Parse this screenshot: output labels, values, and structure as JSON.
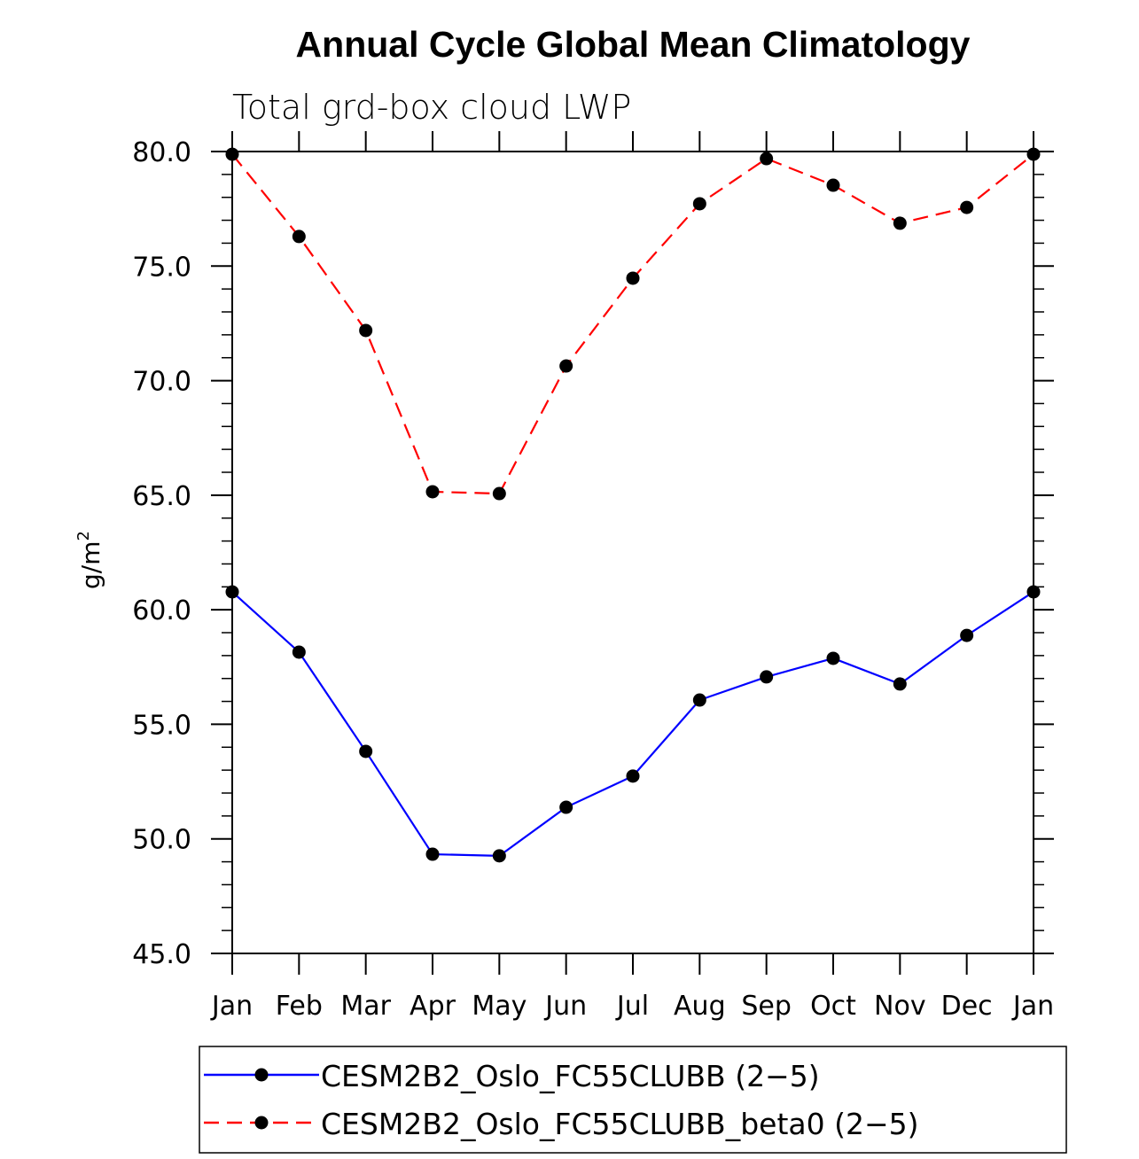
{
  "chart_data": {
    "type": "line",
    "title": "Annual Cycle Global Mean Climatology",
    "subtitle": "Total grd-box cloud LWP",
    "xlabel": "",
    "ylabel": "g/m",
    "ylabel_superscript": "2",
    "categories": [
      "Jan",
      "Feb",
      "Mar",
      "Apr",
      "May",
      "Jun",
      "Jul",
      "Aug",
      "Sep",
      "Oct",
      "Nov",
      "Dec",
      "Jan"
    ],
    "ylim": [
      45.0,
      80.0
    ],
    "yticks": [
      "45.0",
      "50.0",
      "55.0",
      "60.0",
      "65.0",
      "70.0",
      "75.0",
      "80.0"
    ],
    "ytick_values": [
      45,
      50,
      55,
      60,
      65,
      70,
      75,
      80
    ],
    "yminor_step": 1,
    "grid": false,
    "legend_position": "bottom",
    "series": [
      {
        "name": "CESM2B2_Oslo_FC55CLUBB (2-5)",
        "label": "CESM2B2_Oslo_FC55CLUBB (2−5)",
        "color": "#0000ff",
        "dash": "solid",
        "marker": "filled-circle",
        "marker_color": "#000000",
        "values": [
          60.78,
          58.15,
          53.82,
          49.33,
          49.26,
          51.38,
          52.74,
          56.06,
          57.07,
          57.88,
          56.76,
          58.88,
          60.78
        ]
      },
      {
        "name": "CESM2B2_Oslo_FC55CLUBB_beta0 (2-5)",
        "label": "CESM2B2_Oslo_FC55CLUBB_beta0 (2−5)",
        "color": "#ff0000",
        "dash": "dashed",
        "marker": "filled-circle",
        "marker_color": "#000000",
        "values": [
          79.88,
          76.29,
          72.19,
          65.15,
          65.07,
          70.64,
          74.47,
          77.72,
          79.69,
          78.53,
          76.87,
          77.56,
          79.88
        ]
      }
    ]
  }
}
